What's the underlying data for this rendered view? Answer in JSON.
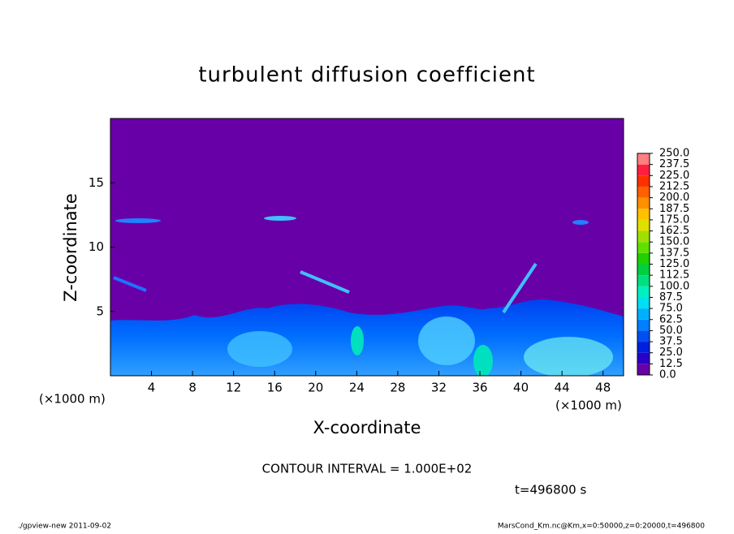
{
  "chart_data": {
    "type": "contour",
    "title": "turbulent diffusion coefficient",
    "xlabel": "X-coordinate",
    "ylabel": "Z-coordinate",
    "x_unit_label": "(×1000 m)",
    "xlim": [
      0,
      50
    ],
    "xticks": [
      4,
      8,
      12,
      16,
      20,
      24,
      28,
      32,
      36,
      40,
      44,
      48
    ],
    "ylim": [
      0,
      20
    ],
    "yticks": [
      5,
      10,
      15
    ],
    "background_color": "#6800a8",
    "colorbar_levels": [
      {
        "value": 0,
        "label": "0.0"
      },
      12.5,
      {
        "value": 25,
        "label": "25.0"
      },
      37.5,
      {
        "value": 50,
        "label": "50.0"
      },
      62.5,
      {
        "value": 75,
        "label": "75.0"
      },
      87.5,
      {
        "value": 100,
        "label": "100.0"
      },
      112.5,
      {
        "value": 125,
        "label": "125.0"
      },
      137.5,
      {
        "value": 150,
        "label": "150.0"
      },
      162.5,
      {
        "value": 175,
        "label": "175.0"
      },
      187.5,
      {
        "value": 200,
        "label": "200.0"
      },
      212.5,
      {
        "value": 225,
        "label": "225.0"
      },
      237.5,
      {
        "value": 250,
        "label": "250.0"
      }
    ],
    "colorbar_colors": [
      "#6800a8",
      "#2a00c8",
      "#0020e0",
      "#0050f0",
      "#0080ff",
      "#00b0ff",
      "#00e0f0",
      "#00f0c0",
      "#00e080",
      "#00d040",
      "#20d000",
      "#60e000",
      "#a0e000",
      "#e0e000",
      "#ffc000",
      "#ff9000",
      "#ff6000",
      "#ff3000",
      "#ff2040",
      "#ff8080"
    ],
    "contour_interval": "CONTOUR INTERVAL = 1.000E+02",
    "time_label": "t=496800 s",
    "footer_left": "./gpview-new  2011-09-02",
    "footer_right": "MarsCond_Km.nc@Km,x=0:50000,z=0:20000,t=496800"
  }
}
